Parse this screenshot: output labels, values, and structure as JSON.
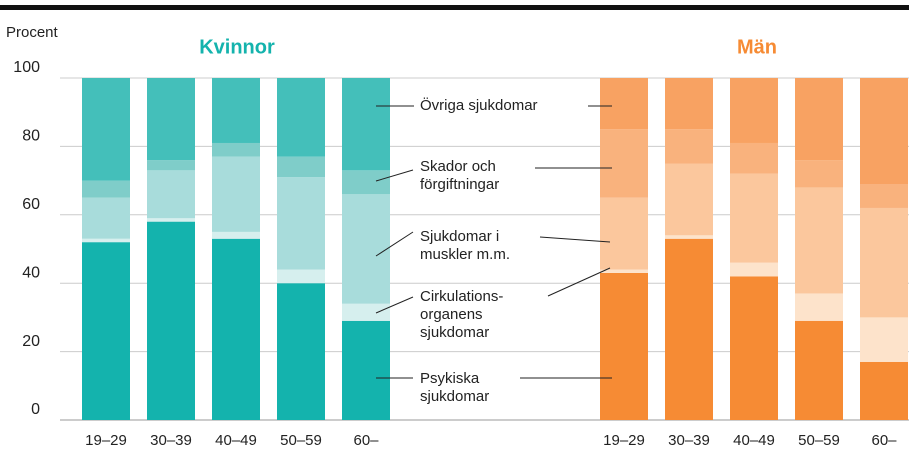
{
  "chart_data": {
    "type": "bar",
    "stacked": true,
    "ylabel": "Procent",
    "ylim": [
      0,
      100
    ],
    "yticks": [
      0,
      20,
      40,
      60,
      80,
      100
    ],
    "grid": true,
    "legend": [
      "Psykiska\nsjukdomar",
      "Cirkulations-\norganens\nsjukdomar",
      "Sjukdomar i\nmuskler m.m.",
      "Skador och\nförgiftningar",
      "Övriga sjukdomar"
    ],
    "groups": [
      {
        "title": "Kvinnor",
        "title_color": "#14b3ad",
        "categories": [
          "19–29",
          "30–39",
          "40–49",
          "50–59",
          "60–"
        ],
        "series": [
          {
            "color": "#14b3ad",
            "values": [
              52,
              58,
              53,
              40,
              29
            ]
          },
          {
            "color": "#d6efee",
            "values": [
              1,
              1,
              2,
              4,
              5
            ]
          },
          {
            "color": "#a8dcdb",
            "values": [
              12,
              14,
              22,
              27,
              32
            ]
          },
          {
            "color": "#7fcdc9",
            "values": [
              5,
              3,
              4,
              6,
              7
            ]
          },
          {
            "color": "#44bfba",
            "values": [
              30,
              24,
              19,
              23,
              27
            ]
          }
        ]
      },
      {
        "title": "Män",
        "title_color": "#f68b34",
        "categories": [
          "19–29",
          "30–39",
          "40–49",
          "50–59",
          "60–"
        ],
        "series": [
          {
            "color": "#f68b34",
            "values": [
              43,
              53,
              42,
              29,
              17
            ]
          },
          {
            "color": "#fde3cb",
            "values": [
              1,
              1,
              4,
              8,
              13
            ]
          },
          {
            "color": "#fbc79d",
            "values": [
              21,
              21,
              26,
              31,
              32
            ]
          },
          {
            "color": "#f9b27d",
            "values": [
              20,
              10,
              9,
              8,
              7
            ]
          },
          {
            "color": "#f8a262",
            "values": [
              15,
              15,
              19,
              24,
              31
            ]
          }
        ]
      }
    ]
  }
}
